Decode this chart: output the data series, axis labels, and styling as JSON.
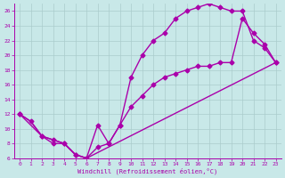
{
  "xlabel": "Windchill (Refroidissement éolien,°C)",
  "xlim": [
    -0.5,
    23.5
  ],
  "ylim": [
    6,
    27
  ],
  "xticks": [
    0,
    1,
    2,
    3,
    4,
    5,
    6,
    7,
    8,
    9,
    10,
    11,
    12,
    13,
    14,
    15,
    16,
    17,
    18,
    19,
    20,
    21,
    22,
    23
  ],
  "yticks": [
    6,
    8,
    10,
    12,
    14,
    16,
    18,
    20,
    22,
    24,
    26
  ],
  "background_color": "#c8e8e8",
  "line_color": "#aa00aa",
  "grid_color": "#aacccc",
  "line1_x": [
    0,
    1,
    2,
    3,
    4,
    5,
    6,
    7,
    8,
    9,
    10,
    11,
    12,
    13,
    14,
    15,
    16,
    17,
    18,
    19,
    20,
    21,
    22,
    23
  ],
  "line1_y": [
    12,
    11,
    9,
    8,
    8,
    6.5,
    6,
    10.5,
    8,
    10.5,
    17,
    20,
    22,
    23,
    25,
    26,
    26.5,
    27,
    26.5,
    26,
    26,
    22,
    21,
    19
  ],
  "line2_x": [
    0,
    2,
    3,
    4,
    5,
    6,
    7,
    8,
    9,
    10,
    11,
    12,
    13,
    14,
    15,
    16,
    17,
    18,
    19,
    20,
    21,
    22,
    23
  ],
  "line2_y": [
    12,
    9,
    8.5,
    8,
    6.5,
    6,
    7.5,
    8,
    10.5,
    13,
    14.5,
    16,
    17,
    17.5,
    18,
    18.5,
    18.5,
    19,
    19,
    25,
    23,
    21.5,
    19
  ],
  "line3_x": [
    0,
    1,
    2,
    3,
    4,
    5,
    6,
    23
  ],
  "line3_y": [
    12,
    11,
    9,
    8.5,
    8,
    6.5,
    6,
    19
  ],
  "marker": "D",
  "markersize": 2.5,
  "linewidth": 1.0
}
